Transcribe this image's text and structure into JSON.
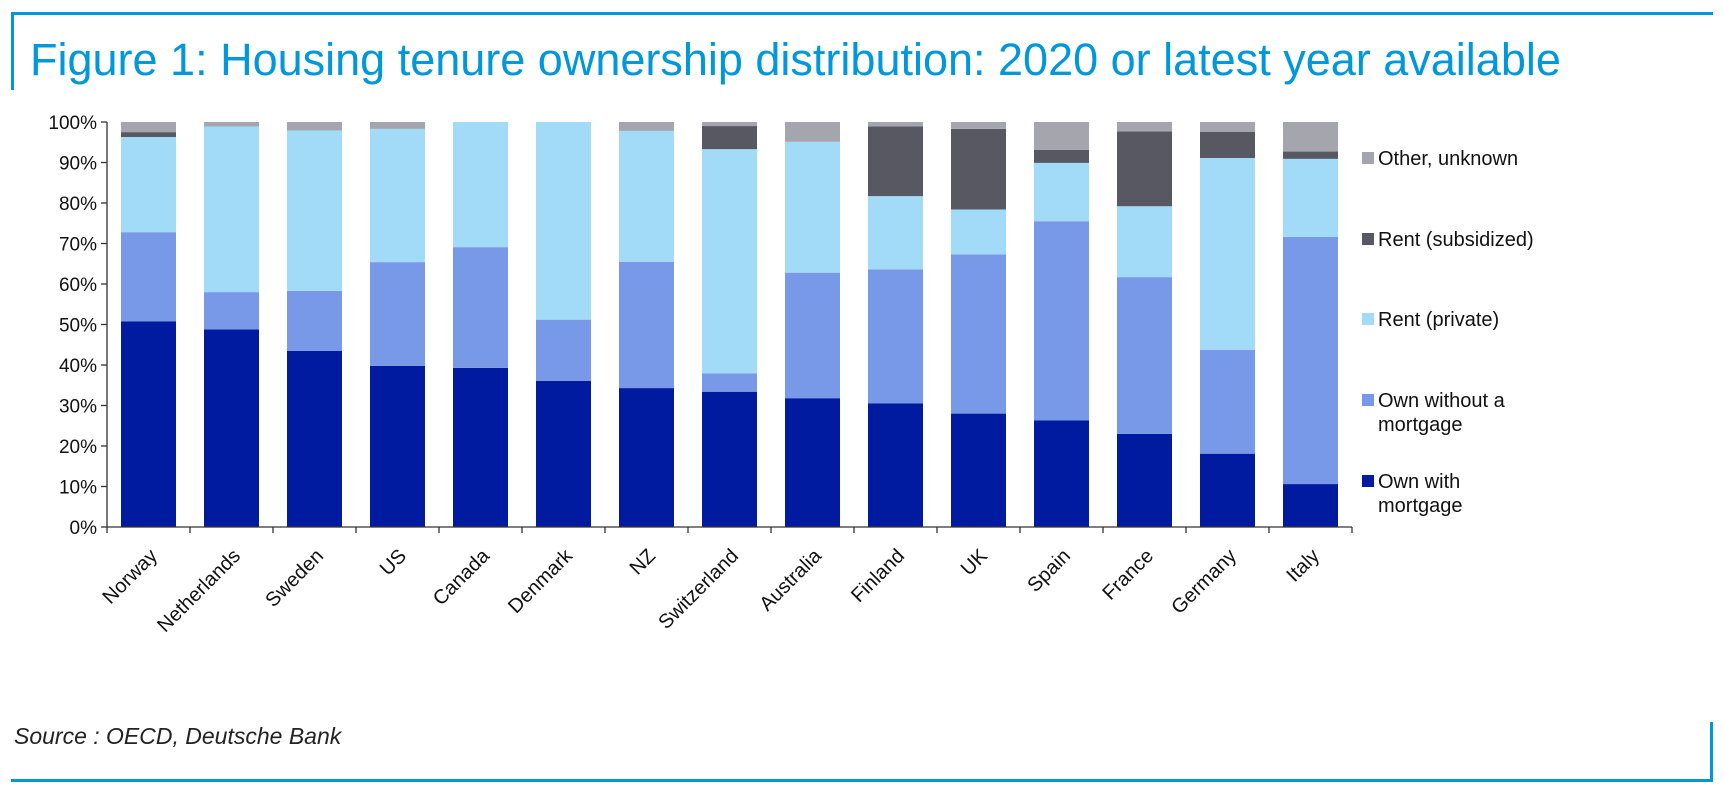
{
  "title": "Figure 1: Housing tenure ownership distribution: 2020 or latest year available",
  "source": "Source : OECD, Deutsche Bank",
  "colors": {
    "frame": "#0098db",
    "own_with_mortgage": "#001aa0",
    "own_without_mortgage": "#7799e8",
    "rent_private": "#a2dbf8",
    "rent_subsidized": "#575862",
    "other_unknown": "#a5a5ae"
  },
  "chart_data": {
    "type": "bar",
    "stacked": true,
    "categories": [
      "Norway",
      "Netherlands",
      "Sweden",
      "US",
      "Canada",
      "Denmark",
      "NZ",
      "Switzerland",
      "Australia",
      "Finland",
      "UK",
      "Spain",
      "France",
      "Germany",
      "Italy"
    ],
    "series": [
      {
        "name": "Own with mortgage",
        "color": "#001aa0",
        "values": [
          50.8,
          48.8,
          43.5,
          39.8,
          39.3,
          36.1,
          34.3,
          33.4,
          31.8,
          30.5,
          28.0,
          26.3,
          23.0,
          18.1,
          10.6
        ]
      },
      {
        "name": "Own without a mortgage",
        "color": "#7799e8",
        "values": [
          22.0,
          9.2,
          14.8,
          25.6,
          29.8,
          15.1,
          31.2,
          4.5,
          31.0,
          33.1,
          39.3,
          49.2,
          38.7,
          25.6,
          61.0
        ]
      },
      {
        "name": "Rent (private)",
        "color": "#a2dbf8",
        "values": [
          23.5,
          40.9,
          39.6,
          32.9,
          30.9,
          48.8,
          32.3,
          55.4,
          32.3,
          18.1,
          11.1,
          14.4,
          17.5,
          47.4,
          19.3
        ]
      },
      {
        "name": "Rent (subsidized)",
        "color": "#575862",
        "values": [
          1.2,
          0.0,
          0.0,
          0.0,
          0.0,
          0.0,
          0.0,
          5.7,
          0.0,
          17.2,
          19.9,
          3.2,
          18.5,
          6.5,
          1.8
        ]
      },
      {
        "name": "Other, unknown",
        "color": "#a5a5ae",
        "values": [
          2.5,
          1.1,
          2.1,
          1.7,
          0.0,
          0.0,
          2.2,
          1.0,
          4.9,
          1.1,
          1.7,
          6.9,
          2.3,
          2.4,
          7.3
        ]
      }
    ],
    "legend_order": [
      "Other, unknown",
      "Rent (subsidized)",
      "Rent (private)",
      "Own without a mortgage",
      "Own with mortgage"
    ],
    "legend_placement": "right",
    "ylim": [
      0,
      100
    ],
    "yticks": [
      "0%",
      "10%",
      "20%",
      "30%",
      "40%",
      "50%",
      "60%",
      "70%",
      "80%",
      "90%",
      "100%"
    ],
    "grid": false
  }
}
